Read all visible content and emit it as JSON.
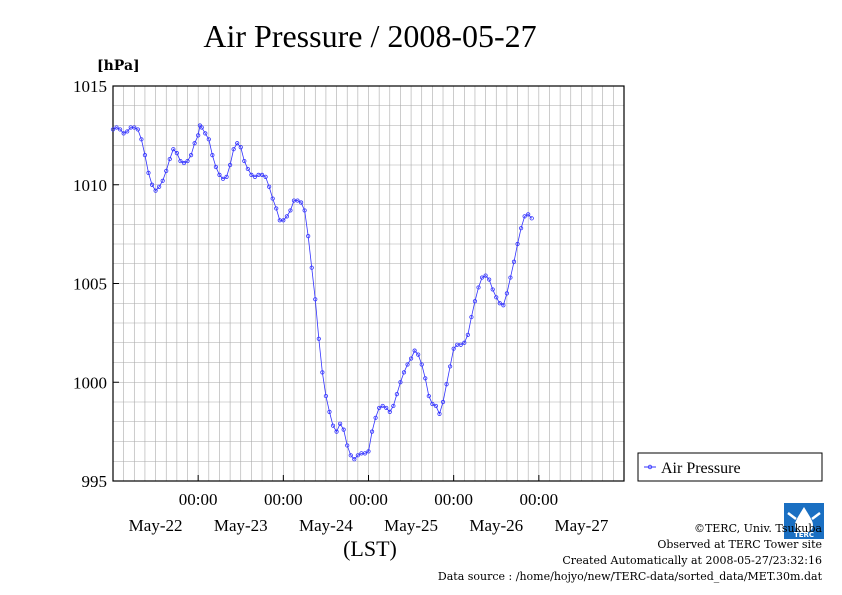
{
  "credits": {
    "copyright": "©TERC, Univ. Tsukuba",
    "observed": "Observed at TERC Tower site",
    "created": "Created Automatically at 2008-05-27/23:32:16",
    "source": "Data source : /home/hojyo/new/TERC-data/sorted_data/MET.30m.dat"
  },
  "logo": {
    "text": "TERC",
    "color": "#1a6fc2"
  },
  "chart_data": {
    "type": "line",
    "title": "Air Pressure / 2008-05-27",
    "ylabel": "[hPa]",
    "xlabel": "(LST)",
    "ylim": [
      995,
      1015
    ],
    "yticks": [
      995,
      1000,
      1005,
      1010,
      1015
    ],
    "xlim": [
      0,
      144
    ],
    "time_ticks": [
      {
        "x": 24,
        "label": "00:00"
      },
      {
        "x": 48,
        "label": "00:00"
      },
      {
        "x": 72,
        "label": "00:00"
      },
      {
        "x": 96,
        "label": "00:00"
      },
      {
        "x": 120,
        "label": "00:00"
      }
    ],
    "day_labels": [
      {
        "x": 12,
        "label": "May-22"
      },
      {
        "x": 36,
        "label": "May-23"
      },
      {
        "x": 60,
        "label": "May-24"
      },
      {
        "x": 84,
        "label": "May-25"
      },
      {
        "x": 108,
        "label": "May-26"
      },
      {
        "x": 132,
        "label": "May-27"
      }
    ],
    "grid": true,
    "legend_position": "right",
    "series": [
      {
        "name": "Air Pressure",
        "color": "#3333ff",
        "points": [
          [
            0,
            1012.8
          ],
          [
            1,
            1012.9
          ],
          [
            2,
            1012.8
          ],
          [
            3,
            1012.6
          ],
          [
            4,
            1012.7
          ],
          [
            5,
            1012.9
          ],
          [
            6,
            1012.9
          ],
          [
            7,
            1012.8
          ],
          [
            8,
            1012.3
          ],
          [
            9,
            1011.5
          ],
          [
            10,
            1010.6
          ],
          [
            11,
            1010.0
          ],
          [
            12,
            1009.7
          ],
          [
            13,
            1009.9
          ],
          [
            14,
            1010.2
          ],
          [
            15,
            1010.7
          ],
          [
            16,
            1011.3
          ],
          [
            17,
            1011.8
          ],
          [
            18,
            1011.6
          ],
          [
            19,
            1011.2
          ],
          [
            20,
            1011.1
          ],
          [
            21,
            1011.2
          ],
          [
            22,
            1011.5
          ],
          [
            23,
            1012.1
          ],
          [
            24,
            1012.5
          ],
          [
            24.5,
            1013.0
          ],
          [
            25,
            1012.9
          ],
          [
            26,
            1012.6
          ],
          [
            27,
            1012.3
          ],
          [
            28,
            1011.5
          ],
          [
            29,
            1010.9
          ],
          [
            30,
            1010.5
          ],
          [
            31,
            1010.3
          ],
          [
            32,
            1010.4
          ],
          [
            33,
            1011.0
          ],
          [
            34,
            1011.8
          ],
          [
            35,
            1012.1
          ],
          [
            36,
            1011.9
          ],
          [
            37,
            1011.2
          ],
          [
            38,
            1010.8
          ],
          [
            39,
            1010.5
          ],
          [
            40,
            1010.4
          ],
          [
            41,
            1010.5
          ],
          [
            42,
            1010.5
          ],
          [
            43,
            1010.4
          ],
          [
            44,
            1009.9
          ],
          [
            45,
            1009.3
          ],
          [
            46,
            1008.8
          ],
          [
            47,
            1008.2
          ],
          [
            48,
            1008.2
          ],
          [
            49,
            1008.4
          ],
          [
            50,
            1008.7
          ],
          [
            51,
            1009.2
          ],
          [
            52,
            1009.2
          ],
          [
            53,
            1009.1
          ],
          [
            54,
            1008.7
          ],
          [
            55,
            1007.4
          ],
          [
            56,
            1005.8
          ],
          [
            57,
            1004.2
          ],
          [
            58,
            1002.2
          ],
          [
            59,
            1000.5
          ],
          [
            60,
            999.3
          ],
          [
            61,
            998.5
          ],
          [
            62,
            997.8
          ],
          [
            63,
            997.5
          ],
          [
            64,
            997.9
          ],
          [
            65,
            997.6
          ],
          [
            66,
            996.8
          ],
          [
            67,
            996.3
          ],
          [
            68,
            996.1
          ],
          [
            69,
            996.3
          ],
          [
            70,
            996.4
          ],
          [
            71,
            996.4
          ],
          [
            72,
            996.5
          ],
          [
            73,
            997.5
          ],
          [
            74,
            998.2
          ],
          [
            75,
            998.7
          ],
          [
            76,
            998.8
          ],
          [
            77,
            998.7
          ],
          [
            78,
            998.5
          ],
          [
            79,
            998.8
          ],
          [
            80,
            999.4
          ],
          [
            81,
            1000.0
          ],
          [
            82,
            1000.5
          ],
          [
            83,
            1000.9
          ],
          [
            84,
            1001.2
          ],
          [
            85,
            1001.6
          ],
          [
            86,
            1001.4
          ],
          [
            87,
            1000.9
          ],
          [
            88,
            1000.2
          ],
          [
            89,
            999.3
          ],
          [
            90,
            998.9
          ],
          [
            91,
            998.8
          ],
          [
            92,
            998.4
          ],
          [
            93,
            999.0
          ],
          [
            94,
            999.9
          ],
          [
            95,
            1000.8
          ],
          [
            96,
            1001.7
          ],
          [
            97,
            1001.9
          ],
          [
            98,
            1001.9
          ],
          [
            99,
            1002.0
          ],
          [
            100,
            1002.4
          ],
          [
            101,
            1003.3
          ],
          [
            102,
            1004.1
          ],
          [
            103,
            1004.8
          ],
          [
            104,
            1005.3
          ],
          [
            105,
            1005.4
          ],
          [
            106,
            1005.2
          ],
          [
            107,
            1004.7
          ],
          [
            108,
            1004.3
          ],
          [
            109,
            1004.0
          ],
          [
            110,
            1003.9
          ],
          [
            111,
            1004.5
          ],
          [
            112,
            1005.3
          ],
          [
            113,
            1006.1
          ],
          [
            114,
            1007.0
          ],
          [
            115,
            1007.8
          ],
          [
            116,
            1008.4
          ],
          [
            117,
            1008.5
          ],
          [
            118,
            1008.3
          ]
        ]
      }
    ]
  }
}
